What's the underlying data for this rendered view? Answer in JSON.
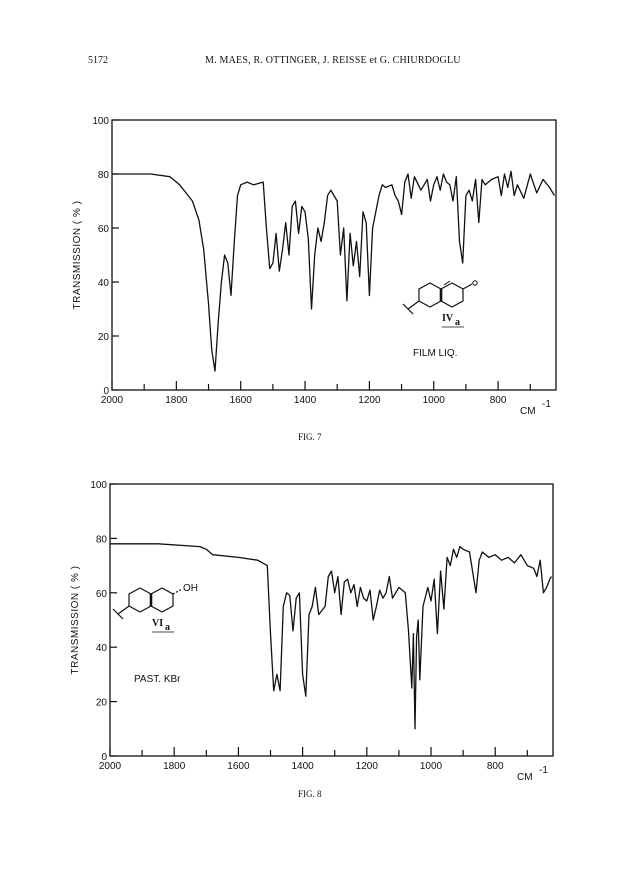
{
  "header": {
    "page_number": "5172",
    "authors": "M. MAES, R. OTTINGER, J. REISSE et G. CHIURDOGLU"
  },
  "chart_data": [
    {
      "type": "line",
      "caption": "FIG. 7",
      "ylabel": "TRANSMISSION ( % )",
      "xunit": "CM",
      "xunit_exp": "-1",
      "x_ticks": [
        "2000",
        "1800",
        "1600",
        "1400",
        "1200",
        "1000",
        "800"
      ],
      "y_ticks": [
        "0",
        "20",
        "40",
        "60",
        "80",
        "100"
      ],
      "xlim": [
        2000,
        620
      ],
      "ylim": [
        0,
        100
      ],
      "compound_label": "IVa",
      "compound_sub": "a",
      "compound_main": "IV",
      "sample_label": "FILM LIQ.",
      "series": [
        {
          "x": [
            2000,
            1880,
            1820,
            1790,
            1770,
            1750,
            1730,
            1715,
            1700,
            1690,
            1680,
            1670,
            1660,
            1650,
            1640,
            1630,
            1620,
            1610,
            1600,
            1580,
            1560,
            1530,
            1520,
            1510,
            1500,
            1490,
            1480,
            1470,
            1460,
            1450,
            1440,
            1430,
            1420,
            1410,
            1400,
            1390,
            1380,
            1370,
            1360,
            1350,
            1340,
            1330,
            1320,
            1300,
            1290,
            1280,
            1270,
            1260,
            1250,
            1240,
            1230,
            1220,
            1210,
            1200,
            1190,
            1180,
            1170,
            1160,
            1150,
            1130,
            1120,
            1110,
            1100,
            1090,
            1080,
            1070,
            1060,
            1040,
            1020,
            1010,
            1000,
            990,
            980,
            970,
            960,
            950,
            940,
            930,
            920,
            910,
            900,
            890,
            880,
            870,
            860,
            850,
            840,
            820,
            800,
            790,
            780,
            770,
            760,
            750,
            740,
            720,
            700,
            680,
            660,
            640,
            625
          ],
          "y": [
            80,
            80,
            79,
            76,
            73,
            70,
            63,
            52,
            32,
            15,
            7,
            25,
            40,
            50,
            47,
            35,
            55,
            72,
            76,
            77,
            76,
            77,
            60,
            45,
            47,
            58,
            44,
            52,
            62,
            50,
            68,
            70,
            58,
            68,
            66,
            56,
            30,
            50,
            60,
            55,
            62,
            72,
            74,
            70,
            50,
            60,
            33,
            58,
            46,
            55,
            42,
            66,
            62,
            35,
            60,
            66,
            72,
            76,
            75,
            76,
            72,
            70,
            65,
            77,
            80,
            71,
            79,
            74,
            78,
            70,
            76,
            79,
            74,
            80,
            77,
            76,
            70,
            79,
            55,
            47,
            72,
            74,
            70,
            78,
            62,
            78,
            76,
            78,
            79,
            72,
            80,
            75,
            81,
            72,
            76,
            71,
            80,
            73,
            78,
            75,
            72
          ]
        }
      ]
    },
    {
      "type": "line",
      "caption": "FIG. 8",
      "ylabel": "TRANSMISSION ( % )",
      "xunit": "CM",
      "xunit_exp": "-1",
      "x_ticks": [
        "2000",
        "1800",
        "1600",
        "1400",
        "1200",
        "1000",
        "800"
      ],
      "y_ticks": [
        "0",
        "20",
        "40",
        "60",
        "80",
        "100"
      ],
      "xlim": [
        2000,
        620
      ],
      "ylim": [
        0,
        100
      ],
      "compound_label": "VIa",
      "compound_sub": "a",
      "compound_main": "VI",
      "sample_label": "PAST. KBr",
      "series": [
        {
          "x": [
            2000,
            1850,
            1720,
            1700,
            1680,
            1600,
            1540,
            1510,
            1500,
            1490,
            1480,
            1470,
            1460,
            1450,
            1440,
            1430,
            1420,
            1410,
            1400,
            1390,
            1380,
            1370,
            1360,
            1350,
            1330,
            1320,
            1310,
            1300,
            1290,
            1280,
            1270,
            1260,
            1250,
            1240,
            1230,
            1220,
            1210,
            1200,
            1190,
            1180,
            1170,
            1160,
            1150,
            1140,
            1130,
            1120,
            1100,
            1080,
            1070,
            1060,
            1055,
            1050,
            1045,
            1040,
            1035,
            1025,
            1010,
            1000,
            990,
            980,
            970,
            960,
            950,
            940,
            930,
            920,
            910,
            900,
            880,
            860,
            850,
            840,
            830,
            820,
            800,
            780,
            760,
            740,
            720,
            700,
            680,
            670,
            660,
            650,
            640,
            630,
            625
          ],
          "y": [
            78,
            78,
            77,
            76,
            74,
            73,
            72,
            70,
            45,
            24,
            30,
            24,
            55,
            60,
            59,
            46,
            58,
            60,
            30,
            22,
            52,
            55,
            62,
            52,
            55,
            66,
            68,
            60,
            66,
            52,
            64,
            65,
            60,
            63,
            55,
            62,
            58,
            57,
            61,
            50,
            55,
            61,
            58,
            60,
            66,
            58,
            62,
            60,
            46,
            25,
            45,
            10,
            44,
            50,
            28,
            55,
            62,
            57,
            65,
            45,
            68,
            54,
            73,
            70,
            76,
            73,
            77,
            76,
            75,
            60,
            72,
            75,
            74,
            73,
            74,
            72,
            73,
            71,
            74,
            70,
            69,
            66,
            72,
            60,
            62,
            65,
            66
          ]
        }
      ]
    }
  ],
  "colors": {
    "ink": "#111111",
    "paper": "#ffffff"
  }
}
